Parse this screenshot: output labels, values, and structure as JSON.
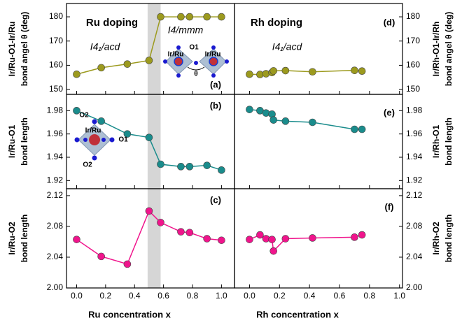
{
  "chart_data": [
    {
      "type": "line",
      "title": "Ru doping",
      "phase_labels": [
        "I4₁/acd",
        "I4/mmm"
      ],
      "panel_label": "(a)",
      "ylabel": [
        "Ir/Ru-O1-Ir/Ru",
        "bond angel θ (deg)"
      ],
      "inset_labels": [
        "Ir/Ru",
        "Ir/Ru",
        "O1",
        "θ"
      ],
      "x": [
        0,
        0.17,
        0.35,
        0.5,
        0.58,
        0.72,
        0.78,
        0.9,
        1.0
      ],
      "values": [
        156.3,
        159,
        160.5,
        162,
        180,
        180,
        180,
        180,
        180
      ],
      "color": "#9c9a1e",
      "shade": [
        0.49,
        0.58
      ],
      "xlim": [
        -0.07,
        1.09
      ],
      "ylim": [
        148,
        185.5
      ],
      "yticks": [
        150,
        160,
        170,
        180
      ]
    },
    {
      "type": "line",
      "panel_label": "(b)",
      "ylabel": [
        "Ir/Ru-O1",
        "bond length"
      ],
      "inset_labels": [
        "O2",
        "Ir/Ru",
        "O1",
        "O2"
      ],
      "x": [
        0,
        0.17,
        0.35,
        0.5,
        0.58,
        0.72,
        0.78,
        0.9,
        1.0
      ],
      "values": [
        1.98,
        1.971,
        1.96,
        1.957,
        1.934,
        1.932,
        1.932,
        1.933,
        1.929
      ],
      "color": "#1a8c8c",
      "shade": [
        0.49,
        0.58
      ],
      "xlim": [
        -0.07,
        1.09
      ],
      "ylim": [
        1.913,
        1.994
      ],
      "yticks": [
        1.92,
        1.94,
        1.96,
        1.98
      ]
    },
    {
      "type": "line",
      "panel_label": "(c)",
      "ylabel": [
        "Ir/Ru-O2",
        "bond length"
      ],
      "xlabel": "Ru concentration x",
      "x": [
        0,
        0.17,
        0.35,
        0.5,
        0.58,
        0.72,
        0.78,
        0.9,
        1.0
      ],
      "values": [
        2.063,
        2.041,
        2.031,
        2.1,
        2.085,
        2.073,
        2.072,
        2.064,
        2.062
      ],
      "color": "#f0148c",
      "shade": [
        0.49,
        0.58
      ],
      "xlim": [
        -0.07,
        1.09
      ],
      "ylim": [
        2.0,
        2.129
      ],
      "yticks": [
        {
          "value": 2.0,
          "label": "2.00"
        },
        2.04,
        2.08,
        2.12
      ],
      "xticks": [
        {
          "value": 0,
          "label": "0.0"
        },
        0.2,
        0.4,
        0.6,
        0.8,
        {
          "value": 1,
          "label": "1.0"
        }
      ]
    },
    {
      "type": "line",
      "title": "Rh doping",
      "phase_labels": [
        "I4₁/acd"
      ],
      "panel_label": "(d)",
      "ylabel": [
        "Ir/Rh-O1-Ir/Rh",
        "bond angel θ (deg)"
      ],
      "x": [
        0,
        0.07,
        0.11,
        0.15,
        0.16,
        0.24,
        0.42,
        0.7,
        0.75
      ],
      "values": [
        156.3,
        156.2,
        156.5,
        157,
        157.7,
        157.8,
        157.3,
        157.9,
        157.6
      ],
      "color": "#9c9a1e",
      "xlim": [
        -0.1,
        1.02
      ],
      "ylim": [
        148,
        185.5
      ],
      "yticks": [
        150,
        160,
        170,
        180
      ]
    },
    {
      "type": "line",
      "panel_label": "(e)",
      "ylabel": [
        "Ir/Rh-O1",
        "bond length"
      ],
      "x": [
        0,
        0.07,
        0.11,
        0.15,
        0.16,
        0.24,
        0.42,
        0.7,
        0.75
      ],
      "values": [
        1.981,
        1.98,
        1.978,
        1.977,
        1.972,
        1.971,
        1.97,
        1.964,
        1.964
      ],
      "color": "#1a8c8c",
      "xlim": [
        -0.1,
        1.02
      ],
      "ylim": [
        1.913,
        1.994
      ],
      "yticks": [
        1.92,
        1.94,
        1.96,
        1.98
      ]
    },
    {
      "type": "line",
      "panel_label": "(f)",
      "ylabel": [
        "Ir/Rh-O2",
        "bond length"
      ],
      "xlabel": "Rh concentration x",
      "x": [
        0,
        0.07,
        0.11,
        0.15,
        0.16,
        0.24,
        0.42,
        0.7,
        0.75
      ],
      "values": [
        2.063,
        2.069,
        2.064,
        2.063,
        2.048,
        2.064,
        2.065,
        2.066,
        2.069
      ],
      "color": "#f0148c",
      "xlim": [
        -0.1,
        1.02
      ],
      "ylim": [
        2.0,
        2.129
      ],
      "yticks": [
        {
          "value": 2.0,
          "label": "2.00"
        },
        2.04,
        2.08,
        2.12
      ],
      "xticks": [
        {
          "value": 0,
          "label": "0.0"
        },
        0.2,
        0.4,
        0.6,
        0.8,
        {
          "value": 1,
          "label": "1.0"
        }
      ]
    }
  ]
}
